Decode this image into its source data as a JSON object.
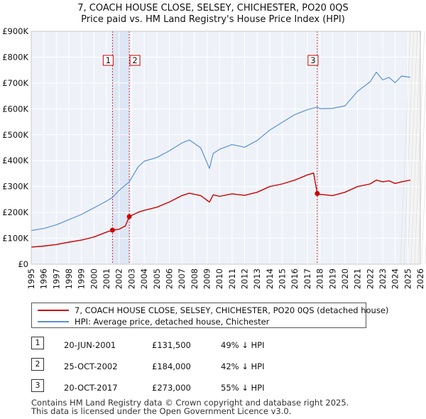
{
  "title": "7, COACH HOUSE CLOSE, SELSEY, CHICHESTER, PO20 0QS",
  "subtitle": "Price paid vs. HM Land Registry's House Price Index (HPI)",
  "chart_data": {
    "type": "line",
    "title": "7, COACH HOUSE CLOSE, SELSEY, CHICHESTER, PO20 0QS",
    "subtitle": "Price paid vs. HM Land Registry's House Price Index (HPI)",
    "xlabel": "",
    "ylabel": "",
    "xlim": [
      1995,
      2026
    ],
    "ylim": [
      0,
      900000
    ],
    "grid": true,
    "x_ticks": [
      1995,
      1996,
      1997,
      1998,
      1999,
      2000,
      2001,
      2002,
      2003,
      2004,
      2005,
      2006,
      2007,
      2008,
      2009,
      2010,
      2011,
      2012,
      2013,
      2014,
      2015,
      2016,
      2017,
      2018,
      2019,
      2020,
      2021,
      2022,
      2023,
      2024,
      2025,
      2026
    ],
    "y_ticks": [
      0,
      100000,
      200000,
      300000,
      400000,
      500000,
      600000,
      700000,
      800000,
      900000
    ],
    "y_tick_labels": [
      "£0",
      "£100K",
      "£200K",
      "£300K",
      "£400K",
      "£500K",
      "£600K",
      "£700K",
      "£800K",
      "£900K"
    ],
    "data_end_year": 2025.2,
    "series": [
      {
        "name": "7, COACH HOUSE CLOSE, SELSEY, CHICHESTER, PO20 0QS (detached house)",
        "color": "#cc0000",
        "x": [
          1995.0,
          1996.0,
          1997.0,
          1998.0,
          1999.0,
          2000.0,
          2001.0,
          2001.47,
          2002.0,
          2002.5,
          2002.81,
          2003.5,
          2004.0,
          2005.0,
          2006.0,
          2007.0,
          2007.6,
          2008.5,
          2009.2,
          2009.5,
          2010.0,
          2011.0,
          2012.0,
          2013.0,
          2014.0,
          2015.0,
          2016.0,
          2017.0,
          2017.5,
          2017.79,
          2018.0,
          2019.0,
          2020.0,
          2021.0,
          2022.0,
          2022.5,
          2023.0,
          2023.5,
          2024.0,
          2024.5,
          2025.2
        ],
        "y": [
          66000,
          70000,
          76000,
          85000,
          93000,
          105000,
          124000,
          131500,
          135000,
          148000,
          184000,
          200000,
          208000,
          220000,
          240000,
          265000,
          274000,
          265000,
          240000,
          268000,
          262000,
          272000,
          266000,
          278000,
          300000,
          310000,
          325000,
          345000,
          352000,
          273000,
          270000,
          265000,
          278000,
          300000,
          310000,
          325000,
          318000,
          322000,
          312000,
          318000,
          325000
        ]
      },
      {
        "name": "HPI: Average price, detached house, Chichester",
        "color": "#5a8fd6",
        "x": [
          1995.0,
          1996.0,
          1997.0,
          1998.0,
          1999.0,
          2000.0,
          2001.0,
          2001.47,
          2002.0,
          2002.81,
          2003.5,
          2004.0,
          2005.0,
          2006.0,
          2007.0,
          2007.6,
          2008.5,
          2009.2,
          2009.5,
          2010.0,
          2011.0,
          2012.0,
          2013.0,
          2014.0,
          2015.0,
          2016.0,
          2017.0,
          2017.79,
          2018.0,
          2019.0,
          2020.0,
          2021.0,
          2022.0,
          2022.5,
          2023.0,
          2023.5,
          2024.0,
          2024.5,
          2025.2
        ],
        "y": [
          130000,
          138000,
          152000,
          172000,
          192000,
          218000,
          244000,
          258000,
          285000,
          318000,
          375000,
          398000,
          412000,
          438000,
          468000,
          480000,
          450000,
          370000,
          428000,
          444000,
          462000,
          452000,
          478000,
          518000,
          548000,
          578000,
          597000,
          607000,
          601000,
          602000,
          612000,
          668000,
          705000,
          742000,
          712000,
          722000,
          701000,
          727000,
          722000
        ]
      }
    ],
    "events": [
      {
        "label": "1",
        "x": 2001.47,
        "price": 131500
      },
      {
        "label": "2",
        "x": 2002.81,
        "price": 184000
      },
      {
        "label": "3",
        "x": 2017.79,
        "price": 273000
      }
    ]
  },
  "legend": [
    {
      "label": "7, COACH HOUSE CLOSE, SELSEY, CHICHESTER, PO20 0QS (detached house)",
      "color": "#cc0000"
    },
    {
      "label": "HPI: Average price, detached house, Chichester",
      "color": "#5a8fd6"
    }
  ],
  "sales": [
    {
      "num": "1",
      "date": "20-JUN-2001",
      "price": "£131,500",
      "hpi": "49% ↓ HPI"
    },
    {
      "num": "2",
      "date": "25-OCT-2002",
      "price": "£184,000",
      "hpi": "42% ↓ HPI"
    },
    {
      "num": "3",
      "date": "20-OCT-2017",
      "price": "£273,000",
      "hpi": "55% ↓ HPI"
    }
  ],
  "footer": {
    "line1": "Contains HM Land Registry data © Crown copyright and database right 2025.",
    "line2": "This data is licensed under the Open Government Licence v3.0."
  }
}
